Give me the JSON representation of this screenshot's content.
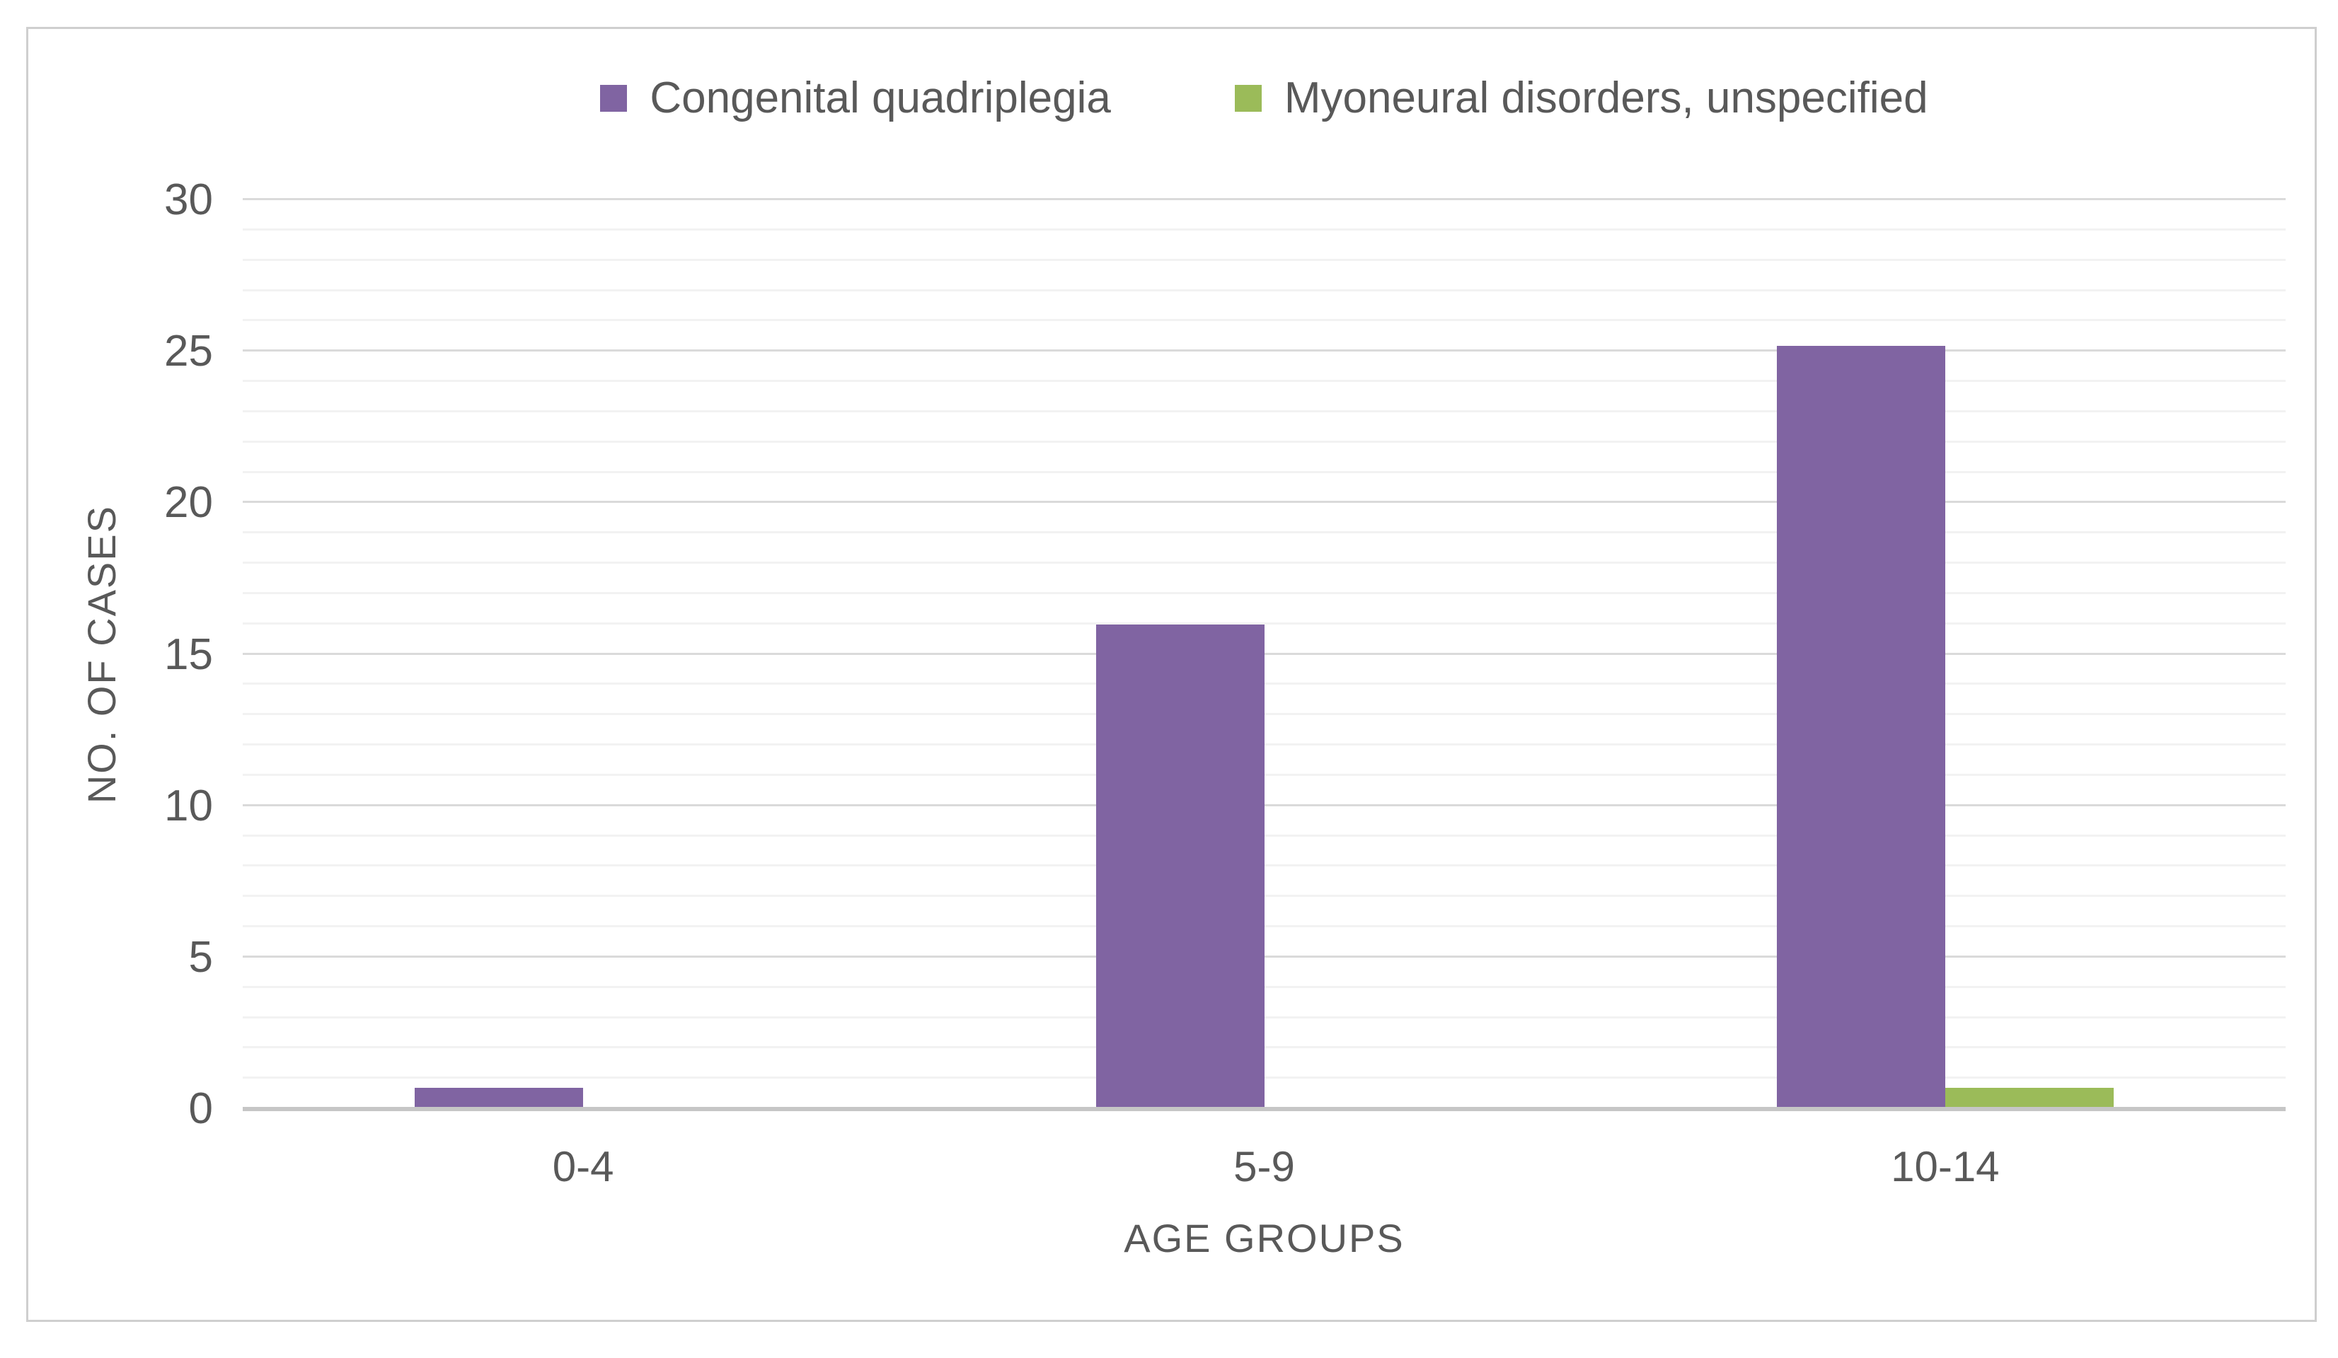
{
  "chart_data": {
    "type": "bar",
    "title": "",
    "categories": [
      "0-4",
      "5-9",
      "10-14"
    ],
    "series": [
      {
        "name": "Congenital quadriplegia",
        "color": "#8064A2",
        "values": [
          0.7,
          16,
          25.2
        ]
      },
      {
        "name": "Myoneural disorders, unspecified",
        "color": "#9BBB59",
        "values": [
          0,
          0,
          0.7
        ]
      }
    ],
    "xlabel": "AGE GROUPS",
    "ylabel": "NO. OF CASES",
    "ylim": [
      0,
      30
    ],
    "y_major_step": 5,
    "y_minor_step": 1,
    "y_tick_labels": [
      "0",
      "5",
      "10",
      "15",
      "20",
      "25",
      "30"
    ],
    "grid": "horizontal minor and major gridlines on",
    "legend_position": "top-center"
  },
  "style": {
    "background": "#FFFFFF",
    "border_color": "#CFCFCF",
    "text_color": "#595959",
    "minor_gridline_color": "#F2F2F2",
    "major_gridline_color": "#DADADA",
    "baseline_color": "#C6C6C6"
  }
}
